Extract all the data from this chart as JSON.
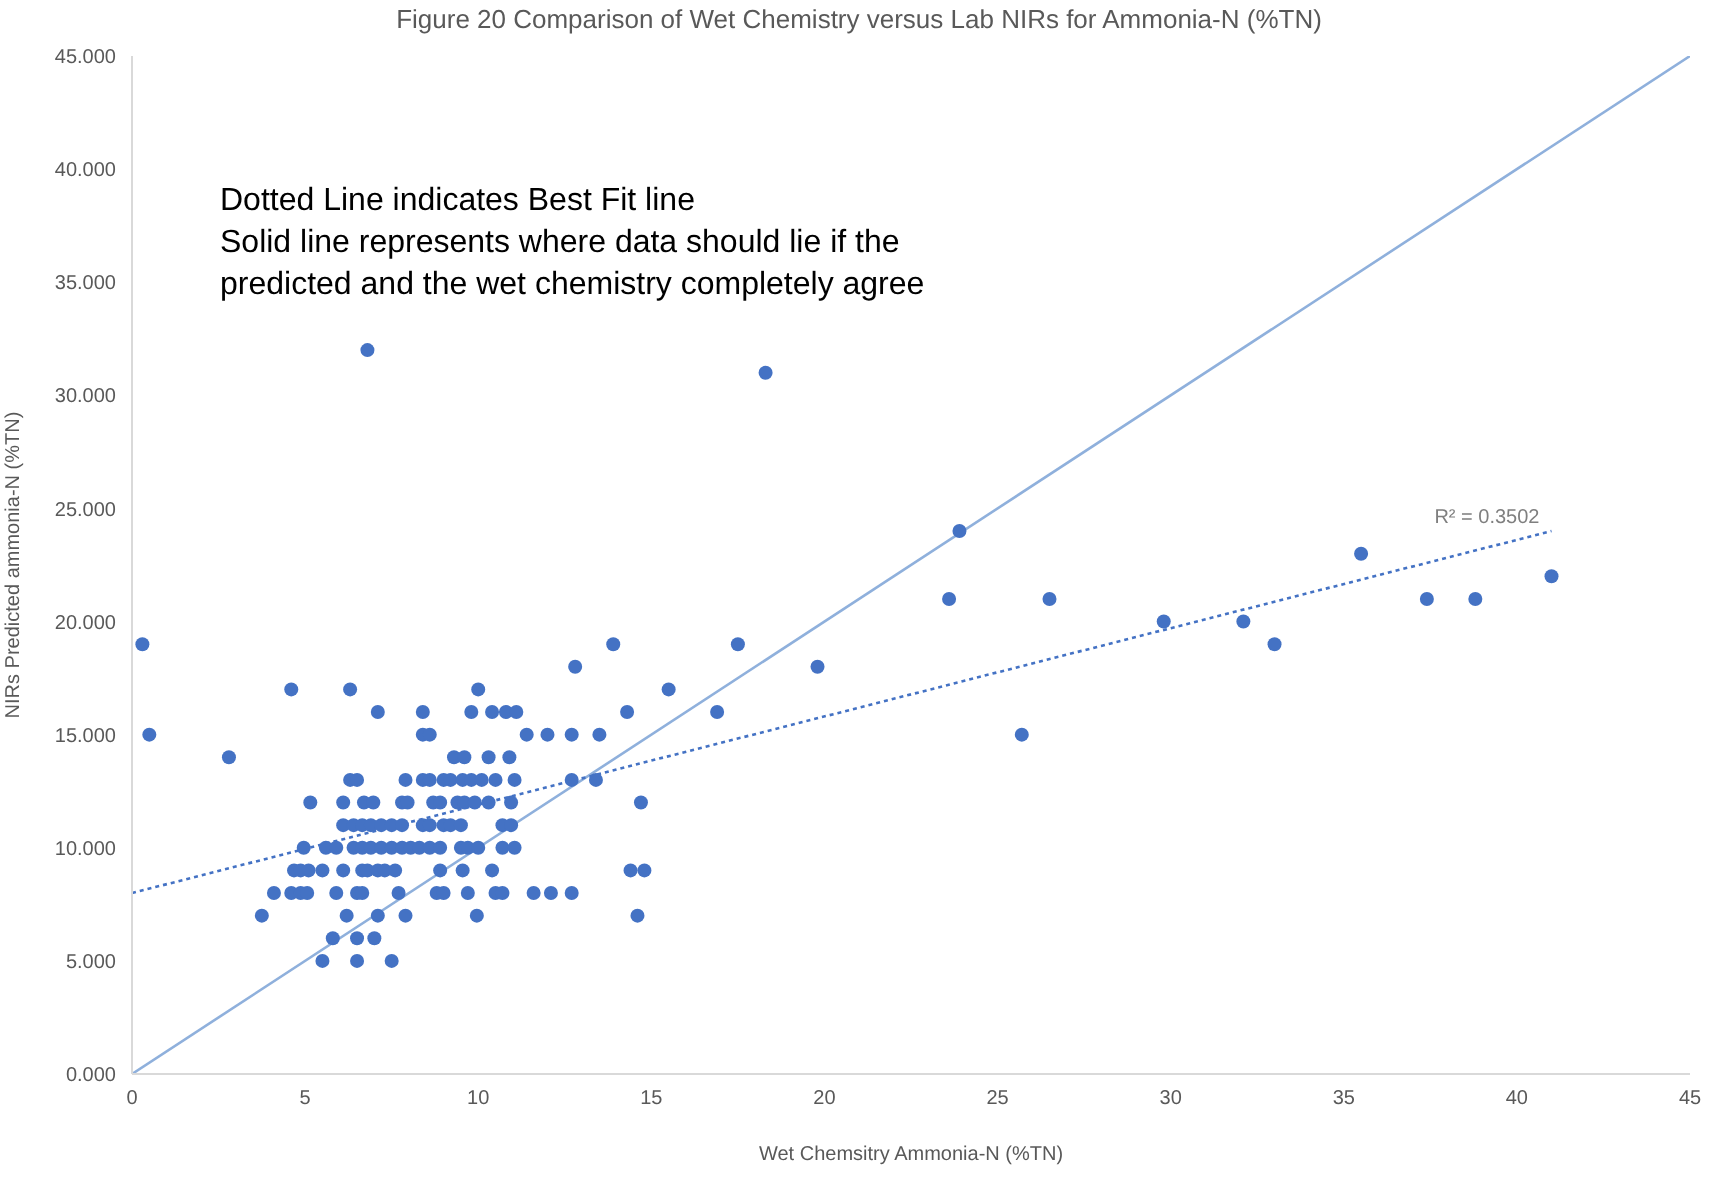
{
  "chart_data": {
    "type": "scatter",
    "title": "Figure 20 Comparison of Wet Chemistry versus Lab NIRs for Ammonia-N (%TN)",
    "xlabel": "Wet Chemsitry Ammonia-N (%TN)",
    "ylabel": "NIRs Predicted ammonia-N (%TN)",
    "xlim": [
      0,
      45
    ],
    "xticks": [
      0,
      5,
      10,
      15,
      20,
      25,
      30,
      35,
      40,
      45
    ],
    "ylim": [
      0,
      45
    ],
    "yticks": [
      {
        "value": 0,
        "label": "0.000"
      },
      {
        "value": 5,
        "label": "5.000"
      },
      {
        "value": 10,
        "label": "10.000"
      },
      {
        "value": 15,
        "label": "15.000"
      },
      {
        "value": 20,
        "label": "20.000"
      },
      {
        "value": 25,
        "label": "25.000"
      },
      {
        "value": 30,
        "label": "30.000"
      },
      {
        "value": 35,
        "label": "35.000"
      },
      {
        "value": 40,
        "label": "40.000"
      },
      {
        "value": 45,
        "label": "45.000"
      }
    ],
    "grid": false,
    "annotations": [
      "Dotted Line indicates Best Fit line",
      "Solid line represents where data should lie if the",
      "predicted and the wet chemistry completely agree",
      {
        "text": "R² = 0.3502",
        "x": 41,
        "y": 24
      }
    ],
    "series": [
      {
        "color": "#4472c4",
        "marker": "circle",
        "x": [
          0.3,
          0.5,
          2.8,
          4.6,
          6.3,
          6.8,
          18.3,
          23.9,
          23.6,
          26.5,
          29.8,
          32.1,
          33,
          35.5,
          37.4,
          38.8,
          41,
          19.8,
          17.5,
          16.9,
          15.5,
          14.3,
          13.9,
          12.8,
          13.5,
          12.7,
          13.4,
          25.7,
          14.7,
          14.4,
          14.8,
          14.6,
          7.1,
          8.4,
          9.8,
          10.4,
          10.8,
          11.1,
          10.0,
          8.4,
          8.6,
          11.4,
          12.0,
          12.7,
          9.3,
          9.6,
          10.3,
          10.9,
          6.3,
          6.5,
          7.9,
          8.4,
          8.6,
          9.0,
          9.2,
          9.55,
          9.8,
          10.1,
          10.5,
          11.05,
          5.15,
          6.1,
          6.7,
          6.97,
          7.8,
          7.96,
          8.7,
          8.9,
          9.4,
          9.6,
          9.9,
          10.3,
          10.95,
          6.1,
          6.4,
          6.65,
          6.9,
          7.2,
          7.5,
          7.8,
          8.4,
          8.6,
          9.0,
          9.2,
          9.5,
          10.7,
          10.95,
          4.96,
          5.6,
          5.9,
          6.4,
          6.65,
          6.9,
          7.2,
          7.5,
          7.8,
          8.05,
          8.3,
          8.6,
          8.9,
          9.5,
          9.7,
          10.0,
          10.7,
          11.05,
          4.68,
          4.87,
          5.1,
          5.5,
          6.1,
          6.65,
          6.8,
          7.1,
          7.3,
          7.6,
          8.9,
          9.55,
          10.4,
          4.1,
          4.6,
          4.87,
          5.06,
          5.9,
          6.5,
          6.65,
          7.7,
          8.8,
          9.0,
          9.7,
          10.5,
          10.7,
          11.6,
          12.1,
          12.7,
          3.75,
          6.2,
          7.1,
          7.9,
          9.96,
          5.8,
          6.5,
          7.0,
          5.5,
          6.5,
          7.5
        ],
        "values": [
          19,
          15,
          14,
          17,
          17,
          32,
          31,
          24,
          21,
          21,
          20,
          20,
          19,
          23,
          21,
          21,
          22,
          18,
          19,
          16,
          17,
          16,
          19,
          18,
          15,
          13,
          13,
          15,
          12,
          9,
          9,
          7,
          16,
          16,
          16,
          16,
          16,
          16,
          17,
          15,
          15,
          15,
          15,
          15,
          14,
          14,
          14,
          14,
          13,
          13,
          13,
          13,
          13,
          13,
          13,
          13,
          13,
          13,
          13,
          13,
          12,
          12,
          12,
          12,
          12,
          12,
          12,
          12,
          12,
          12,
          12,
          12,
          12,
          11,
          11,
          11,
          11,
          11,
          11,
          11,
          11,
          11,
          11,
          11,
          11,
          11,
          11,
          10,
          10,
          10,
          10,
          10,
          10,
          10,
          10,
          10,
          10,
          10,
          10,
          10,
          10,
          10,
          10,
          10,
          10,
          9,
          9,
          9,
          9,
          9,
          9,
          9,
          9,
          9,
          9,
          9,
          9,
          9,
          8,
          8,
          8,
          8,
          8,
          8,
          8,
          8,
          8,
          8,
          8,
          8,
          8,
          8,
          8,
          8,
          7,
          7,
          7,
          7,
          7,
          6,
          6,
          6,
          5,
          5,
          5
        ]
      },
      {
        "type": "line",
        "color": "#8fb0dc",
        "line_style": "solid",
        "marker": "none",
        "x": [
          0,
          45
        ],
        "values": [
          0,
          45
        ]
      },
      {
        "type": "line",
        "color": "#4472c4",
        "line_style": "dotted",
        "marker": "none",
        "x": [
          0,
          41
        ],
        "values": [
          8,
          24
        ]
      }
    ]
  }
}
